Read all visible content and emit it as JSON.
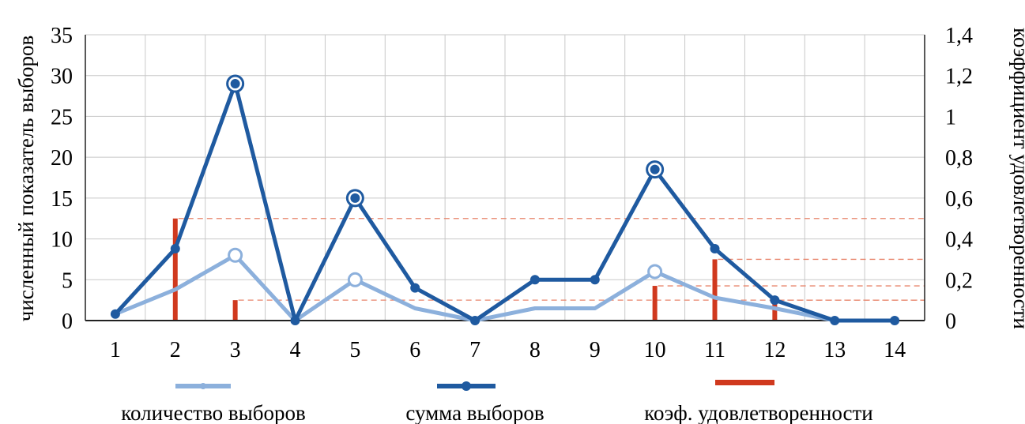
{
  "chart_data": {
    "type": "line",
    "x": [
      1,
      2,
      3,
      4,
      5,
      6,
      7,
      8,
      9,
      10,
      11,
      12,
      13,
      14
    ],
    "series": [
      {
        "name": "количество выборов",
        "axis": "left",
        "kind": "line",
        "color": "#8cb0dc",
        "values": [
          0.8,
          3.8,
          8,
          0,
          5,
          1.5,
          0,
          1.5,
          1.5,
          6,
          2.8,
          1.5,
          0,
          0
        ],
        "highlighted_points": [
          3,
          5,
          10
        ]
      },
      {
        "name": "сумма выборов",
        "axis": "left",
        "kind": "line",
        "color": "#1f5aa0",
        "values": [
          0.8,
          8.8,
          29,
          0,
          15,
          4,
          0,
          5,
          5,
          18.5,
          8.8,
          2.5,
          0,
          0
        ],
        "highlighted_points": [
          3,
          5,
          10
        ]
      },
      {
        "name": "коэф. удовлетворенности",
        "axis": "right",
        "kind": "bar",
        "color": "#d0391e",
        "values": [
          0,
          0.5,
          0.1,
          0,
          0,
          0,
          0,
          0,
          0,
          0.17,
          0.3,
          0.1,
          0,
          0
        ]
      }
    ],
    "xlim": [
      0.5,
      14.5
    ],
    "ylim": [
      0,
      35
    ],
    "y2lim": [
      0,
      1.4
    ],
    "xticks": [
      "1",
      "2",
      "3",
      "4",
      "5",
      "6",
      "7",
      "8",
      "9",
      "10",
      "11",
      "12",
      "13",
      "14"
    ],
    "yticks": [
      "0",
      "5",
      "10",
      "15",
      "20",
      "25",
      "30",
      "35"
    ],
    "y2ticks": [
      "0",
      "0,2",
      "0,4",
      "0,6",
      "0,8",
      "1",
      "1,2",
      "1,4"
    ],
    "ylabel": "численный показатель выборов",
    "y2label": "коэффициент удовлетворенности",
    "grid": true,
    "legend_position": "bottom"
  },
  "colors": {
    "grid": "#c8c8c8",
    "axis": "#222222",
    "reference_lines": "#e8846a"
  }
}
